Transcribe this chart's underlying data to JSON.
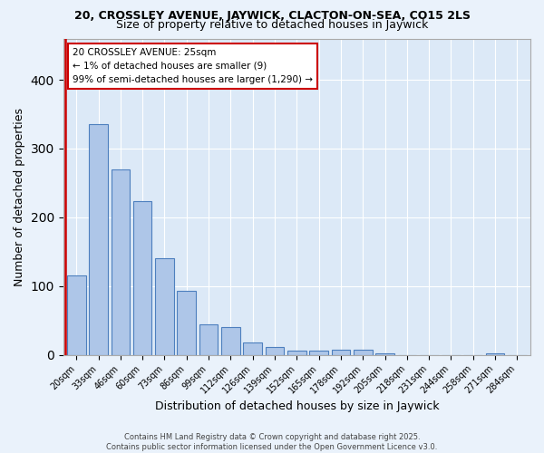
{
  "title1": "20, CROSSLEY AVENUE, JAYWICK, CLACTON-ON-SEA, CO15 2LS",
  "title2": "Size of property relative to detached houses in Jaywick",
  "xlabel": "Distribution of detached houses by size in Jaywick",
  "ylabel": "Number of detached properties",
  "bar_values": [
    116,
    335,
    270,
    224,
    140,
    93,
    45,
    40,
    18,
    11,
    6,
    6,
    7,
    7,
    3,
    0,
    0,
    0,
    0,
    3,
    0
  ],
  "bar_labels": [
    "20sqm",
    "33sqm",
    "46sqm",
    "60sqm",
    "73sqm",
    "86sqm",
    "99sqm",
    "112sqm",
    "126sqm",
    "139sqm",
    "152sqm",
    "165sqm",
    "178sqm",
    "192sqm",
    "205sqm",
    "218sqm",
    "231sqm",
    "244sqm",
    "258sqm",
    "271sqm",
    "284sqm"
  ],
  "bar_color": "#aec6e8",
  "bar_edge_color": "#4d7fbe",
  "background_color": "#dce9f7",
  "grid_color": "#ffffff",
  "annotation_line1": "20 CROSSLEY AVENUE: 25sqm",
  "annotation_line2": "← 1% of detached houses are smaller (9)",
  "annotation_line3": "99% of semi-detached houses are larger (1,290) →",
  "annotation_box_color": "#ffffff",
  "annotation_box_edge": "#cc0000",
  "red_line_x": -0.5,
  "ylim": [
    0,
    460
  ],
  "footer1": "Contains HM Land Registry data © Crown copyright and database right 2025.",
  "footer2": "Contains public sector information licensed under the Open Government Licence v3.0."
}
